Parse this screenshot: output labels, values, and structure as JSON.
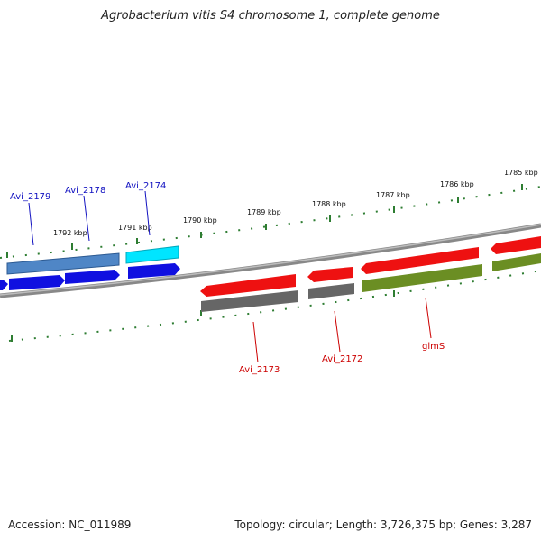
{
  "title": "Agrobacterium vitis S4 chromosome 1, complete genome",
  "footer": {
    "accession": "Accession: NC_011989",
    "summary": "Topology: circular; Length: 3,726,375 bp; Genes: 3,287"
  },
  "scale_labels": [
    "1792 kbp",
    "1791 kbp",
    "1790 kbp",
    "1789 kbp",
    "1788 kbp",
    "1787 kbp",
    "1786 kbp",
    "1785 kbp"
  ],
  "gene_labels": {
    "forward": [
      "Avi_2179",
      "Avi_2178",
      "Avi_2174"
    ],
    "reverse": [
      "Avi_2173",
      "Avi_2172",
      "glmS"
    ]
  },
  "colors": {
    "forward_label": "#1010c0",
    "reverse_label": "#cc0000",
    "tick": "#2e7d32",
    "backbone": "#7a7a7a",
    "blue": "#1010e0",
    "steel_blue": "#4f86c6",
    "cyan": "#00e5ff",
    "red": "#ee1111",
    "gray": "#666666",
    "olive": "#6b8e23"
  }
}
